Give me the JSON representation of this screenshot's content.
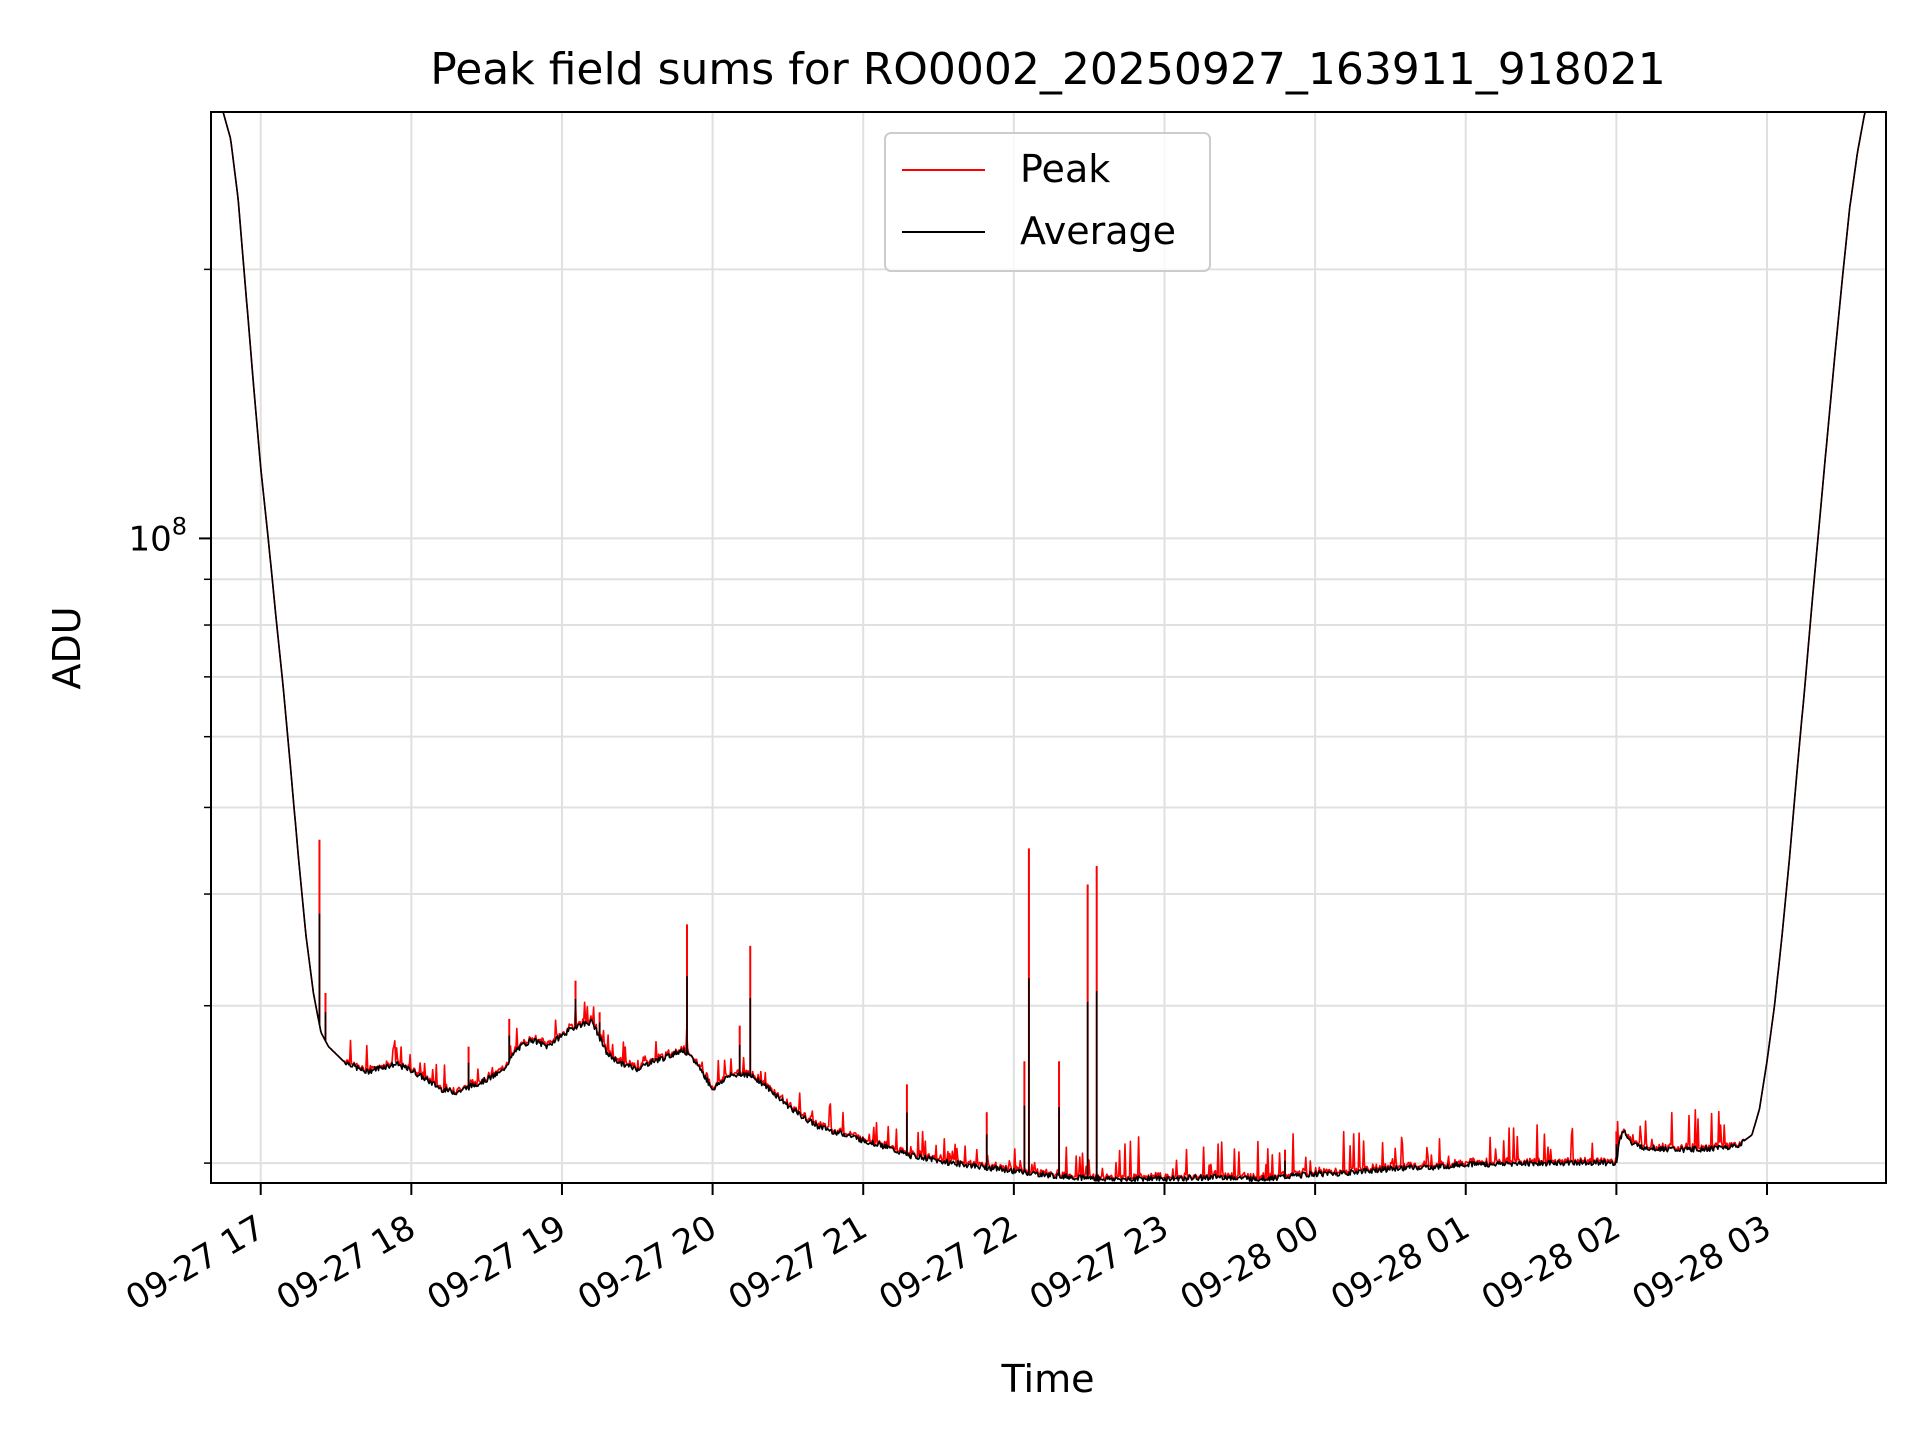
{
  "chart_data": {
    "type": "line",
    "title": "Peak field sums for RO0002_20250927_163911_918021",
    "xlabel": "Time",
    "ylabel": "ADU",
    "yscale": "log",
    "ylim": [
      19000000,
      300000000
    ],
    "y_tick_label": {
      "base": "10",
      "exp": "8",
      "value": 100000000
    },
    "y_minor_ticks": [
      20000000,
      30000000,
      40000000,
      50000000,
      60000000,
      70000000,
      80000000,
      90000000,
      200000000
    ],
    "xlim_hours": [
      16.67,
      27.79
    ],
    "x_ticks": [
      {
        "h": 17,
        "label": "09-27 17"
      },
      {
        "h": 18,
        "label": "09-27 18"
      },
      {
        "h": 19,
        "label": "09-27 19"
      },
      {
        "h": 20,
        "label": "09-27 20"
      },
      {
        "h": 21,
        "label": "09-27 21"
      },
      {
        "h": 22,
        "label": "09-27 22"
      },
      {
        "h": 23,
        "label": "09-27 23"
      },
      {
        "h": 24,
        "label": "09-28 00"
      },
      {
        "h": 25,
        "label": "09-28 01"
      },
      {
        "h": 26,
        "label": "09-28 02"
      },
      {
        "h": 27,
        "label": "09-28 03"
      }
    ],
    "grid": true,
    "legend": {
      "position": "upper-center",
      "entries": [
        {
          "name": "Peak",
          "color": "#ff0000"
        },
        {
          "name": "Average",
          "color": "#000000"
        }
      ]
    },
    "series": [
      {
        "name": "Average",
        "color": "#000000",
        "x_hours": [
          16.75,
          16.8,
          16.85,
          16.9,
          16.95,
          17.0,
          17.05,
          17.1,
          17.15,
          17.2,
          17.25,
          17.3,
          17.35,
          17.4,
          17.45,
          17.5,
          17.55,
          17.6,
          17.65,
          17.7,
          17.8,
          17.9,
          18.0,
          18.1,
          18.2,
          18.3,
          18.4,
          18.5,
          18.6,
          18.7,
          18.8,
          18.9,
          19.0,
          19.1,
          19.2,
          19.3,
          19.4,
          19.5,
          19.6,
          19.7,
          19.8,
          19.9,
          20.0,
          20.1,
          20.2,
          20.3,
          20.4,
          20.5,
          20.6,
          20.7,
          20.8,
          20.9,
          21.0,
          21.1,
          21.2,
          21.3,
          21.4,
          21.5,
          21.6,
          21.7,
          21.8,
          21.9,
          22.0,
          22.1,
          22.2,
          22.3,
          22.4,
          22.5,
          22.6,
          22.7,
          22.8,
          22.9,
          23.0,
          23.2,
          23.4,
          23.6,
          23.8,
          24.0,
          24.2,
          24.4,
          24.6,
          24.8,
          25.0,
          25.2,
          25.4,
          25.6,
          25.8,
          26.0,
          26.02,
          26.05,
          26.1,
          26.2,
          26.4,
          26.6,
          26.8,
          26.9,
          26.95,
          27.0,
          27.05,
          27.1,
          27.15,
          27.2,
          27.25,
          27.3,
          27.35,
          27.4,
          27.45,
          27.5,
          27.55,
          27.6,
          27.65,
          27.7,
          27.75
        ],
        "values": [
          300000000,
          280000000,
          240000000,
          190000000,
          150000000,
          120000000,
          100000000,
          82000000,
          68000000,
          55000000,
          44000000,
          36000000,
          31000000,
          28000000,
          27000000,
          26500000,
          26000000,
          25800000,
          25500000,
          25300000,
          25600000,
          25800000,
          25400000,
          24800000,
          24200000,
          24000000,
          24400000,
          24800000,
          25300000,
          26800000,
          27500000,
          27000000,
          27800000,
          28500000,
          28800000,
          26500000,
          25800000,
          25500000,
          26000000,
          26300000,
          26800000,
          25800000,
          24200000,
          25000000,
          25200000,
          24800000,
          24000000,
          23200000,
          22500000,
          22000000,
          21700000,
          21500000,
          21200000,
          21000000,
          20700000,
          20400000,
          20300000,
          20100000,
          20000000,
          19900000,
          19800000,
          19700000,
          19600000,
          19500000,
          19400000,
          19350000,
          19300000,
          19250000,
          19200000,
          19200000,
          19200000,
          19250000,
          19200000,
          19250000,
          19300000,
          19200000,
          19300000,
          19450000,
          19500000,
          19650000,
          19750000,
          19800000,
          19950000,
          19950000,
          20000000,
          20000000,
          20050000,
          20000000,
          21200000,
          21800000,
          21000000,
          20800000,
          20700000,
          20750000,
          20900000,
          21500000,
          23000000,
          26000000,
          30000000,
          36000000,
          44000000,
          55000000,
          68000000,
          85000000,
          105000000,
          130000000,
          160000000,
          195000000,
          235000000,
          270000000,
          300000000,
          300000000,
          300000000
        ]
      },
      {
        "name": "Peak",
        "color": "#ff0000",
        "spikes": [
          {
            "h": 17.39,
            "value": 46000000
          },
          {
            "h": 17.43,
            "value": 31000000
          },
          {
            "h": 18.38,
            "value": 27000000
          },
          {
            "h": 18.65,
            "value": 29000000
          },
          {
            "h": 19.09,
            "value": 32000000
          },
          {
            "h": 19.25,
            "value": 29500000
          },
          {
            "h": 19.83,
            "value": 37000000
          },
          {
            "h": 20.18,
            "value": 28500000
          },
          {
            "h": 20.25,
            "value": 35000000
          },
          {
            "h": 21.29,
            "value": 24500000
          },
          {
            "h": 21.82,
            "value": 22800000
          },
          {
            "h": 22.07,
            "value": 26000000
          },
          {
            "h": 22.1,
            "value": 45000000
          },
          {
            "h": 22.3,
            "value": 26000000
          },
          {
            "h": 22.49,
            "value": 41000000
          },
          {
            "h": 22.55,
            "value": 43000000
          },
          {
            "h": 23.8,
            "value": 20700000
          },
          {
            "h": 26.0,
            "value": 21700000
          }
        ]
      }
    ]
  }
}
